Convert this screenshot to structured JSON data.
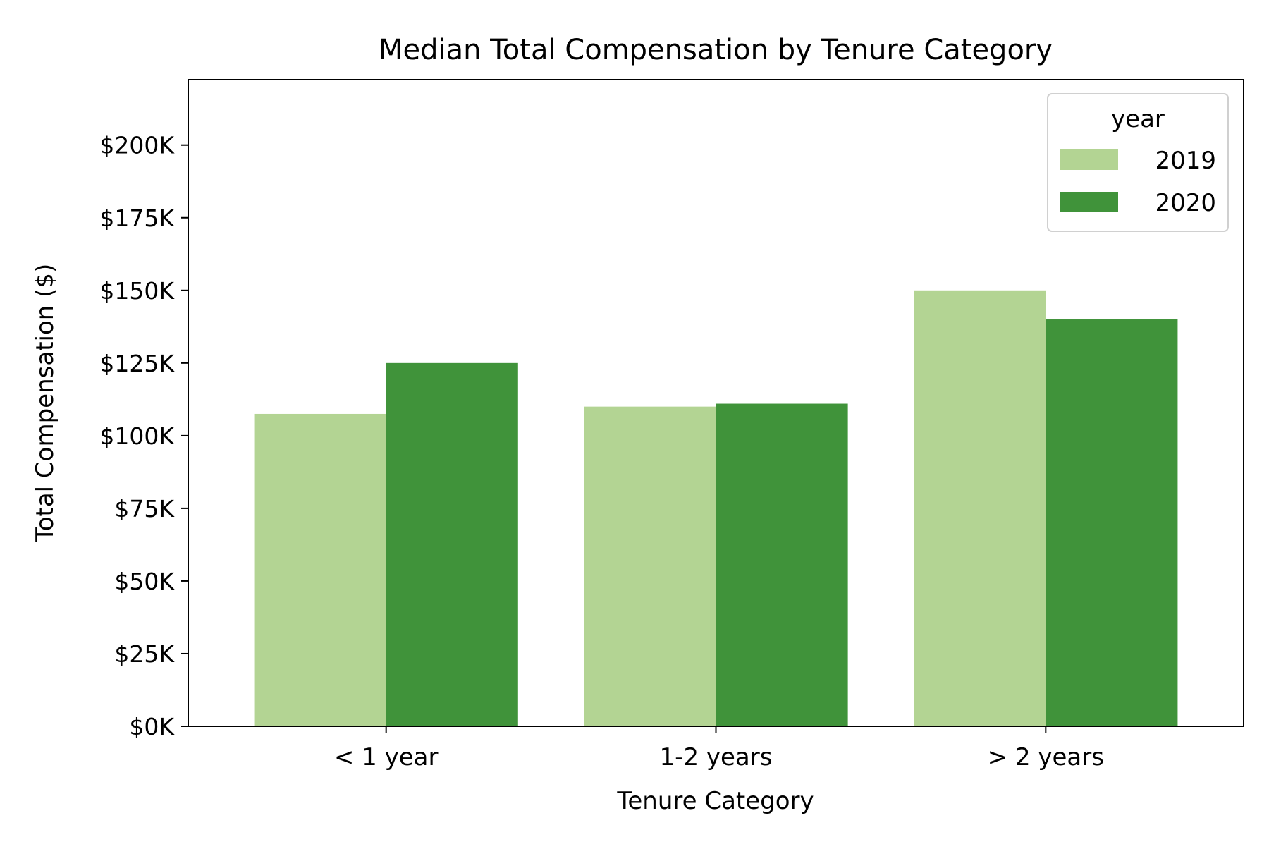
{
  "chart_data": {
    "type": "bar",
    "title": "Median Total Compensation by Tenure Category",
    "xlabel": "Tenure Category",
    "ylabel": "Total Compensation ($)",
    "categories": [
      "< 1 year",
      "1-2 years",
      "> 2 years"
    ],
    "series": [
      {
        "name": "2019",
        "color": "#b3d493",
        "values": [
          107500,
          110000,
          150000
        ]
      },
      {
        "name": "2020",
        "color": "#40933a",
        "values": [
          125000,
          111000,
          140000
        ]
      }
    ],
    "ylim": [
      0,
      222500
    ],
    "yticks": [
      0,
      25000,
      50000,
      75000,
      100000,
      125000,
      150000,
      175000,
      200000
    ],
    "ytick_labels": [
      "$0K",
      "$25K",
      "$50K",
      "$75K",
      "$100K",
      "$125K",
      "$150K",
      "$175K",
      "$200K"
    ],
    "legend": {
      "title": "year",
      "position": "top-right"
    },
    "grid": false
  }
}
